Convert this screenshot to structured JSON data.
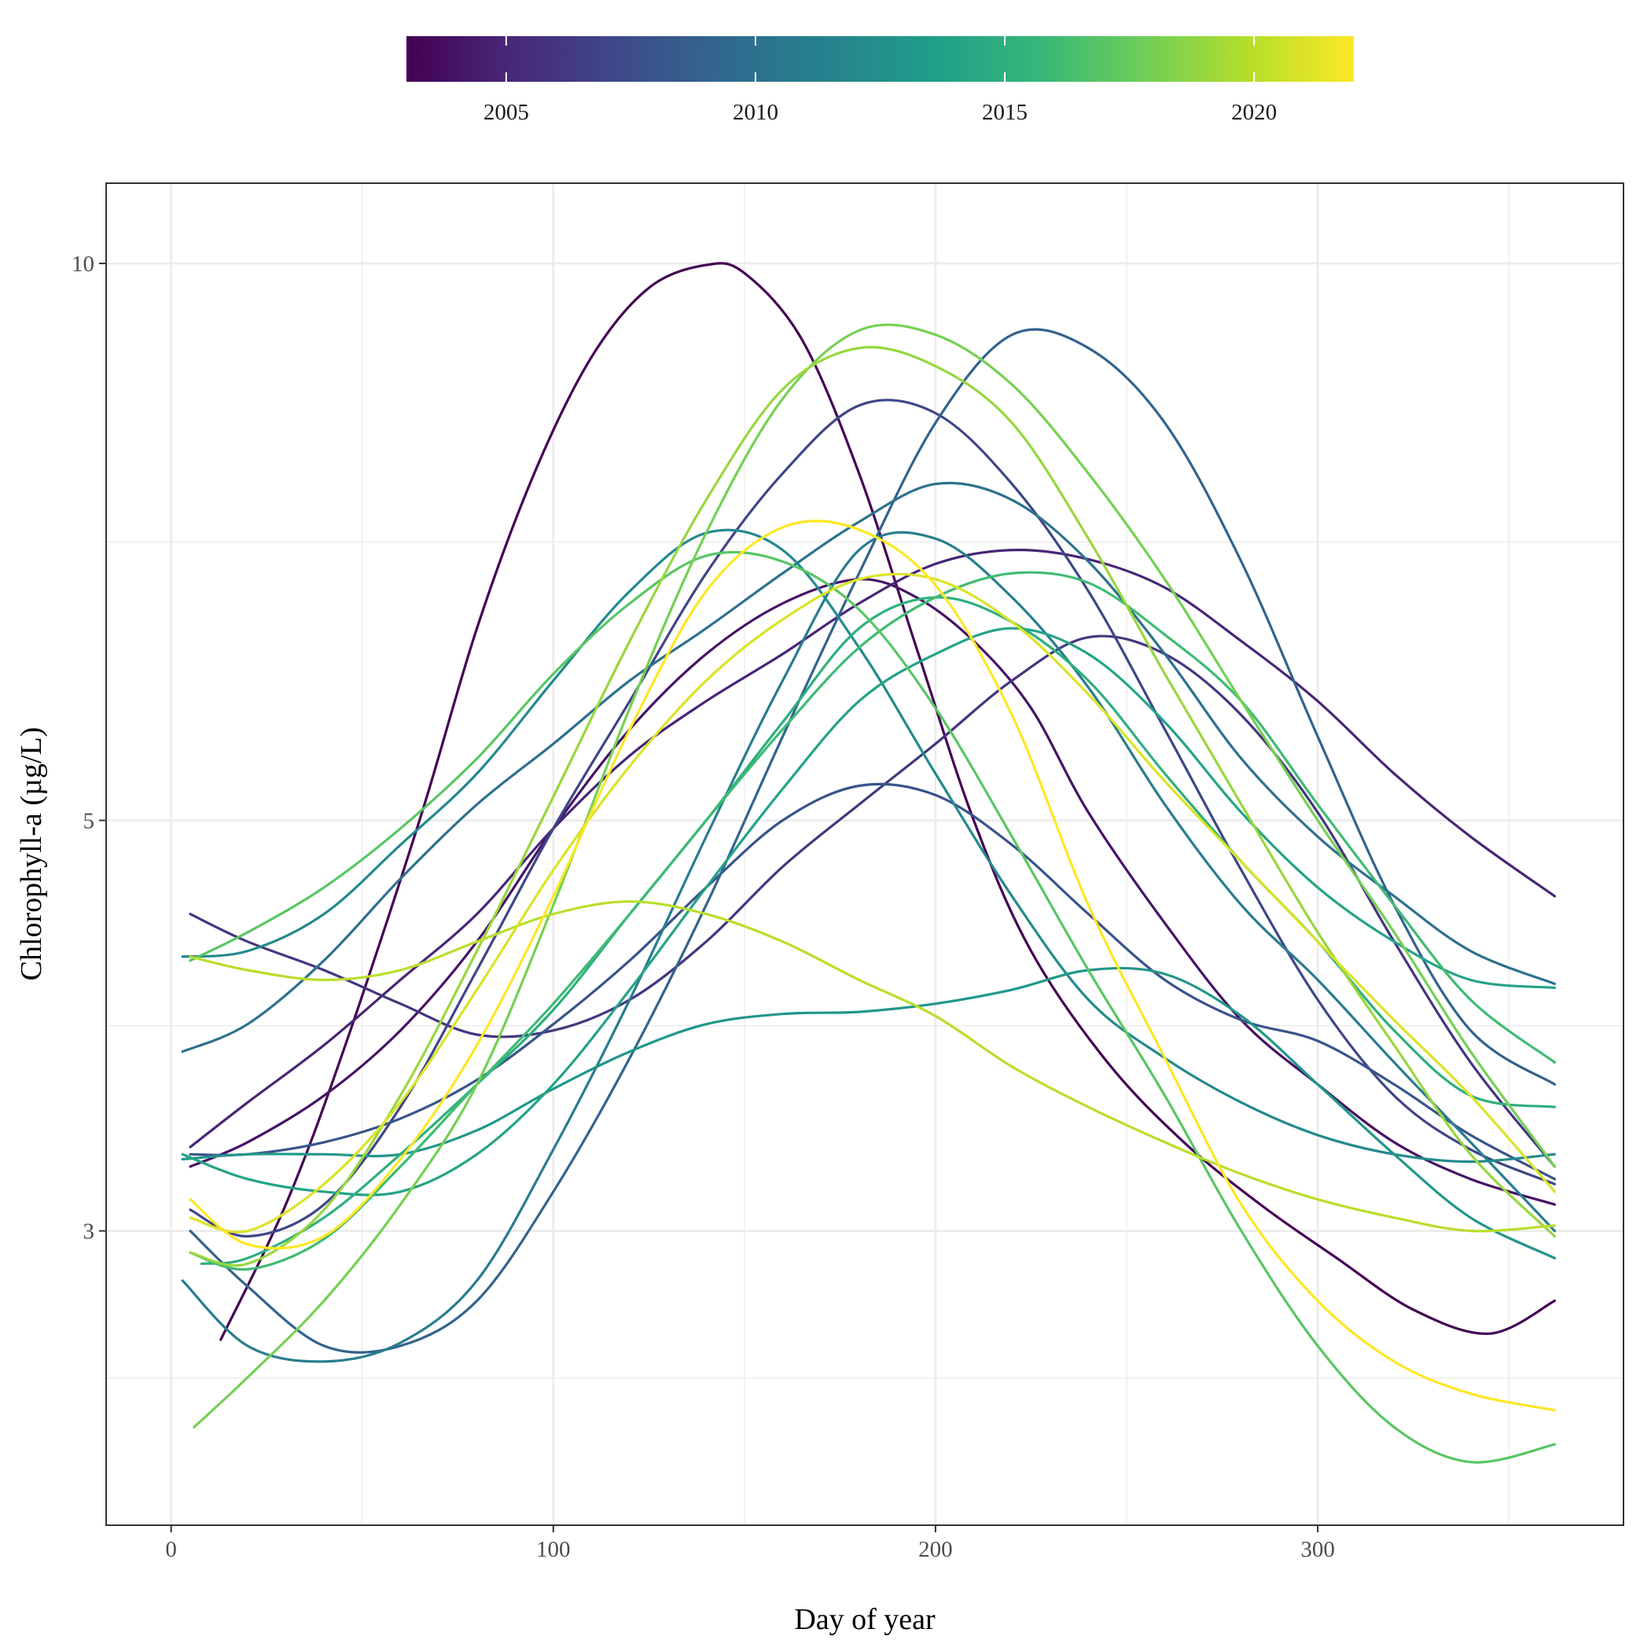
{
  "chart_data": {
    "type": "line",
    "xlabel": "Day of year",
    "ylabel": "Chlorophyll-a (µg/L)",
    "xlim": [
      -17,
      380
    ],
    "ylim": [
      2.08,
      11.05
    ],
    "y_scale": "log",
    "x_ticks": [
      0,
      100,
      200,
      300
    ],
    "y_ticks": [
      3,
      5,
      10
    ],
    "grid": true,
    "legend": {
      "type": "colorbar",
      "placement": "top",
      "range": [
        2003,
        2022
      ],
      "ticks": [
        2005,
        2010,
        2015,
        2020
      ],
      "palette": "viridis"
    },
    "series": [
      {
        "year": 2003,
        "x": [
          13,
          30,
          45,
          65,
          80,
          95,
          110,
          125,
          140,
          150,
          165,
          180,
          195,
          210,
          225,
          245,
          265,
          285,
          305,
          325,
          345,
          362
        ],
        "y": [
          2.62,
          3.1,
          3.75,
          5.0,
          6.35,
          7.7,
          8.9,
          9.7,
          9.98,
          9.88,
          9.1,
          7.7,
          6.2,
          5.0,
          4.25,
          3.7,
          3.35,
          3.1,
          2.9,
          2.72,
          2.64,
          2.75
        ]
      },
      {
        "year": 2004,
        "x": [
          5,
          20,
          40,
          60,
          80,
          100,
          120,
          140,
          160,
          180,
          195,
          210,
          225,
          240,
          260,
          280,
          300,
          320,
          340,
          362
        ],
        "y": [
          3.25,
          3.35,
          3.55,
          3.85,
          4.3,
          4.95,
          5.6,
          6.15,
          6.55,
          6.75,
          6.6,
          6.25,
          5.75,
          5.05,
          4.4,
          3.9,
          3.6,
          3.35,
          3.2,
          3.1
        ]
      },
      {
        "year": 2005,
        "x": [
          5,
          20,
          40,
          60,
          80,
          100,
          120,
          140,
          160,
          180,
          200,
          220,
          240,
          260,
          280,
          300,
          320,
          340,
          362
        ],
        "y": [
          3.33,
          3.52,
          3.78,
          4.1,
          4.45,
          4.95,
          5.42,
          5.8,
          6.15,
          6.55,
          6.88,
          7.0,
          6.92,
          6.68,
          6.25,
          5.8,
          5.3,
          4.9,
          4.55
        ]
      },
      {
        "year": 2006,
        "x": [
          5,
          20,
          40,
          60,
          80,
          100,
          120,
          140,
          160,
          180,
          200,
          220,
          240,
          260,
          280,
          300,
          320,
          340,
          362
        ],
        "y": [
          4.45,
          4.3,
          4.15,
          3.98,
          3.83,
          3.85,
          4.0,
          4.3,
          4.72,
          5.1,
          5.5,
          5.95,
          6.28,
          6.15,
          5.7,
          5.05,
          4.3,
          3.7,
          3.25
        ]
      },
      {
        "year": 2007,
        "x": [
          5,
          20,
          40,
          60,
          80,
          100,
          120,
          140,
          160,
          180,
          200,
          220,
          240,
          260,
          280,
          300,
          320,
          340,
          362
        ],
        "y": [
          3.08,
          2.98,
          3.1,
          3.5,
          4.15,
          4.95,
          5.8,
          6.8,
          7.7,
          8.38,
          8.3,
          7.6,
          6.65,
          5.6,
          4.7,
          4.0,
          3.55,
          3.32,
          3.18
        ]
      },
      {
        "year": 2008,
        "x": [
          5,
          20,
          40,
          60,
          80,
          100,
          120,
          140,
          160,
          180,
          200,
          220,
          240,
          260,
          280,
          300,
          320,
          340,
          362
        ],
        "y": [
          3.3,
          3.3,
          3.35,
          3.45,
          3.62,
          3.88,
          4.2,
          4.6,
          5.0,
          5.22,
          5.16,
          4.85,
          4.45,
          4.1,
          3.9,
          3.8,
          3.6,
          3.38,
          3.2
        ]
      },
      {
        "year": 2009,
        "x": [
          5,
          20,
          40,
          60,
          80,
          100,
          120,
          140,
          160,
          180,
          200,
          220,
          240,
          260,
          280,
          300,
          320,
          340,
          362
        ],
        "y": [
          3.0,
          2.8,
          2.6,
          2.6,
          2.75,
          3.15,
          3.72,
          4.5,
          5.55,
          6.8,
          8.2,
          9.15,
          9.0,
          8.2,
          6.9,
          5.55,
          4.5,
          3.85,
          3.6
        ]
      },
      {
        "year": 2010,
        "x": [
          3,
          20,
          40,
          60,
          80,
          100,
          120,
          140,
          160,
          180,
          200,
          220,
          240,
          260,
          280,
          300,
          320,
          340,
          362
        ],
        "y": [
          3.75,
          3.88,
          4.2,
          4.65,
          5.1,
          5.5,
          5.95,
          6.35,
          6.8,
          7.25,
          7.6,
          7.45,
          6.9,
          6.15,
          5.4,
          4.9,
          4.55,
          4.25,
          4.08
        ]
      },
      {
        "year": 2011,
        "x": [
          3,
          20,
          40,
          60,
          80,
          100,
          120,
          140,
          160,
          180,
          200,
          220,
          240,
          260,
          280,
          300,
          320,
          340,
          362
        ],
        "y": [
          2.82,
          2.6,
          2.55,
          2.61,
          2.82,
          3.32,
          4.0,
          4.9,
          5.95,
          7.0,
          7.1,
          6.6,
          5.9,
          5.1,
          4.5,
          4.1,
          3.7,
          3.35,
          3.0
        ]
      },
      {
        "year": 2012,
        "x": [
          3,
          20,
          40,
          60,
          80,
          100,
          120,
          140,
          160,
          180,
          200,
          220,
          240,
          260,
          280,
          300,
          320,
          340,
          362
        ],
        "y": [
          4.22,
          4.25,
          4.45,
          4.85,
          5.3,
          5.95,
          6.65,
          7.15,
          7.0,
          6.2,
          5.3,
          4.55,
          4.0,
          3.72,
          3.52,
          3.38,
          3.3,
          3.27,
          3.3
        ]
      },
      {
        "year": 2013,
        "x": [
          3,
          20,
          40,
          60,
          80,
          100,
          120,
          140,
          160,
          180,
          200,
          220,
          240,
          260,
          280,
          300,
          320,
          340,
          362
        ],
        "y": [
          3.28,
          3.3,
          3.3,
          3.3,
          3.4,
          3.58,
          3.75,
          3.88,
          3.93,
          3.94,
          3.98,
          4.05,
          4.15,
          4.13,
          3.92,
          3.6,
          3.3,
          3.05,
          2.9
        ]
      },
      {
        "year": 2014,
        "x": [
          3,
          20,
          40,
          60,
          80,
          100,
          120,
          140,
          160,
          180,
          200,
          220,
          240,
          260,
          280,
          300,
          320,
          340,
          362
        ],
        "y": [
          3.3,
          3.2,
          3.15,
          3.15,
          3.3,
          3.6,
          4.05,
          4.6,
          5.2,
          5.8,
          6.15,
          6.35,
          6.15,
          5.65,
          5.05,
          4.6,
          4.3,
          4.1,
          4.06
        ]
      },
      {
        "year": 2015,
        "x": [
          8,
          20,
          40,
          60,
          80,
          100,
          120,
          140,
          160,
          180,
          200,
          220,
          240,
          260,
          280,
          300,
          320,
          340,
          362
        ],
        "y": [
          2.88,
          2.9,
          3.05,
          3.3,
          3.6,
          3.95,
          4.45,
          5.0,
          5.65,
          6.35,
          6.6,
          6.4,
          5.95,
          5.3,
          4.75,
          4.3,
          3.85,
          3.55,
          3.5
        ]
      },
      {
        "year": 2016,
        "x": [
          5,
          20,
          40,
          60,
          80,
          100,
          120,
          140,
          160,
          180,
          200,
          220,
          240,
          260,
          280,
          300,
          320,
          340,
          362
        ],
        "y": [
          2.92,
          2.86,
          2.97,
          3.25,
          3.6,
          3.98,
          4.45,
          5.0,
          5.6,
          6.2,
          6.6,
          6.8,
          6.72,
          6.3,
          5.8,
          5.1,
          4.5,
          4.0,
          3.7
        ]
      },
      {
        "year": 2017,
        "x": [
          5,
          20,
          40,
          60,
          80,
          100,
          120,
          140,
          160,
          180,
          200,
          220,
          240,
          260,
          280,
          300,
          320,
          340,
          362
        ],
        "y": [
          4.2,
          4.35,
          4.6,
          4.95,
          5.4,
          6.0,
          6.55,
          6.95,
          6.9,
          6.5,
          5.75,
          4.9,
          4.15,
          3.55,
          3.0,
          2.6,
          2.35,
          2.25,
          2.3
        ]
      },
      {
        "year": 2018,
        "x": [
          6,
          20,
          40,
          60,
          80,
          100,
          120,
          140,
          160,
          180,
          200,
          220,
          240,
          260,
          280,
          300,
          320,
          340,
          362
        ],
        "y": [
          2.35,
          2.5,
          2.75,
          3.1,
          3.6,
          4.5,
          5.75,
          7.15,
          8.45,
          9.2,
          9.15,
          8.6,
          7.7,
          6.75,
          5.8,
          5.0,
          4.35,
          3.75,
          3.25
        ]
      },
      {
        "year": 2019,
        "x": [
          5,
          20,
          40,
          60,
          80,
          100,
          120,
          140,
          160,
          180,
          200,
          220,
          240,
          260,
          280,
          300,
          320,
          340,
          362
        ],
        "y": [
          2.92,
          2.88,
          3.08,
          3.55,
          4.25,
          5.15,
          6.25,
          7.45,
          8.55,
          9.0,
          8.8,
          8.2,
          7.1,
          6.0,
          5.1,
          4.35,
          3.78,
          3.3,
          2.98
        ]
      },
      {
        "year": 2020,
        "x": [
          5,
          20,
          40,
          60,
          80,
          100,
          120,
          140,
          160,
          180,
          200,
          220,
          240,
          260,
          280,
          300,
          320,
          340,
          362
        ],
        "y": [
          4.22,
          4.15,
          4.1,
          4.15,
          4.3,
          4.45,
          4.52,
          4.45,
          4.3,
          4.1,
          3.92,
          3.68,
          3.5,
          3.35,
          3.22,
          3.12,
          3.05,
          3.0,
          3.02
        ]
      },
      {
        "year": 2021,
        "x": [
          5,
          20,
          40,
          60,
          80,
          100,
          120,
          140,
          160,
          180,
          200,
          220,
          240,
          260,
          280,
          300,
          320,
          340,
          362
        ],
        "y": [
          3.05,
          3.0,
          3.18,
          3.52,
          4.05,
          4.7,
          5.35,
          5.95,
          6.42,
          6.75,
          6.75,
          6.4,
          5.85,
          5.25,
          4.75,
          4.3,
          3.9,
          3.55,
          3.15
        ]
      },
      {
        "year": 2022,
        "x": [
          5,
          20,
          40,
          60,
          80,
          100,
          120,
          140,
          160,
          180,
          200,
          220,
          240,
          260,
          280,
          300,
          320,
          340,
          362
        ],
        "y": [
          3.12,
          2.95,
          2.98,
          3.28,
          3.78,
          4.55,
          5.6,
          6.65,
          7.2,
          7.18,
          6.7,
          5.7,
          4.5,
          3.72,
          3.1,
          2.75,
          2.55,
          2.45,
          2.4
        ]
      }
    ]
  }
}
